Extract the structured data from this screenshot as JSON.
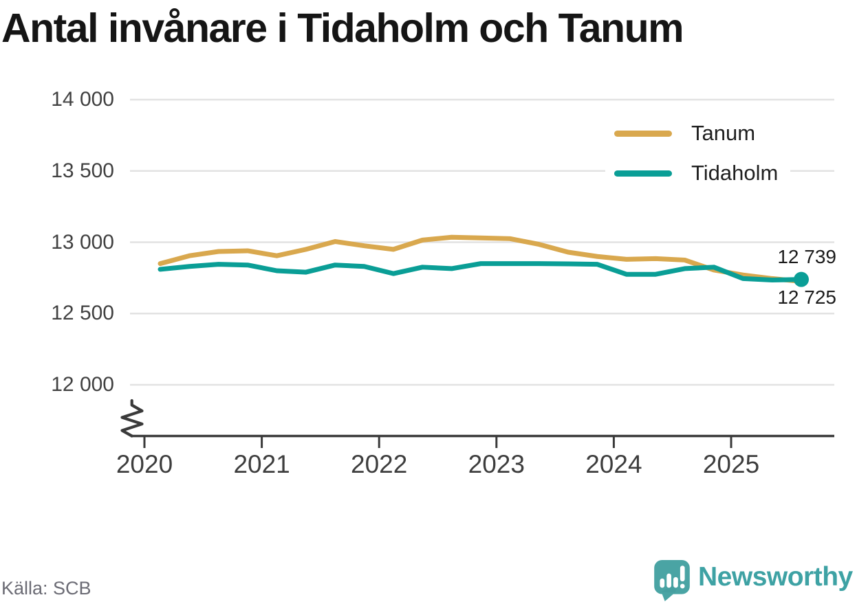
{
  "header": {
    "title": "Antal invånare i Tidaholm och Tanum"
  },
  "chart_data": {
    "type": "line",
    "title": "Antal invånare i Tidaholm och Tanum",
    "source": "Källa: SCB",
    "grid": "horizontal",
    "legend": {
      "position": "top-right",
      "entries": [
        "Tanum",
        "Tidaholm"
      ]
    },
    "x_axis": {
      "unit": "year",
      "tick_labels": [
        "2020",
        "2021",
        "2022",
        "2023",
        "2024",
        "2025"
      ],
      "axis_break_at_left": true
    },
    "y_axis": {
      "range": [
        12000,
        14000
      ],
      "tick_values": [
        14000,
        13500,
        13000,
        12500,
        12000
      ],
      "tick_labels": [
        "14 000",
        "13 500",
        "13 000",
        "12 500",
        "12 000"
      ]
    },
    "categories": [
      "2020 Q1",
      "2020 Q2",
      "2020 Q3",
      "2020 Q4",
      "2021 Q1",
      "2021 Q2",
      "2021 Q3",
      "2021 Q4",
      "2022 Q1",
      "2022 Q2",
      "2022 Q3",
      "2022 Q4",
      "2023 Q1",
      "2023 Q2",
      "2023 Q3",
      "2023 Q4",
      "2024 Q1",
      "2024 Q2",
      "2024 Q3",
      "2024 Q4",
      "2025 Q1",
      "2025 Q2",
      "2025 Q3"
    ],
    "series": [
      {
        "name": "Tanum",
        "color": "#d9a84e",
        "end_value": 12725,
        "values": [
          12850,
          12905,
          12935,
          12940,
          12905,
          12950,
          13005,
          12975,
          12950,
          13015,
          13035,
          13030,
          13025,
          12985,
          12930,
          12900,
          12880,
          12885,
          12875,
          12805,
          12770,
          12745,
          12725
        ]
      },
      {
        "name": "Tidaholm",
        "color": "#0a9e96",
        "end_dot": true,
        "end_value": 12739,
        "values": [
          12810,
          12830,
          12845,
          12840,
          12800,
          12790,
          12840,
          12830,
          12780,
          12825,
          12815,
          12850,
          12850,
          12850,
          12848,
          12845,
          12775,
          12775,
          12815,
          12825,
          12745,
          12735,
          12739
        ]
      }
    ],
    "end_labels": [
      {
        "series": "Tidaholm",
        "text": "12 739"
      },
      {
        "series": "Tanum",
        "text": "12 725"
      }
    ]
  },
  "footer": {
    "source_label": "Källa: SCB",
    "brand_name": "Newsworthy"
  },
  "colors": {
    "grid": "#e2e2e2",
    "axis": "#3a3a3a",
    "title_text": "#151515",
    "tick_text": "#414141",
    "end_label_text": "#1b1b1b",
    "source_text": "#6b6b74",
    "brand_teal": "#3ea2a4",
    "brand_bubble": "#4aa4a4"
  }
}
